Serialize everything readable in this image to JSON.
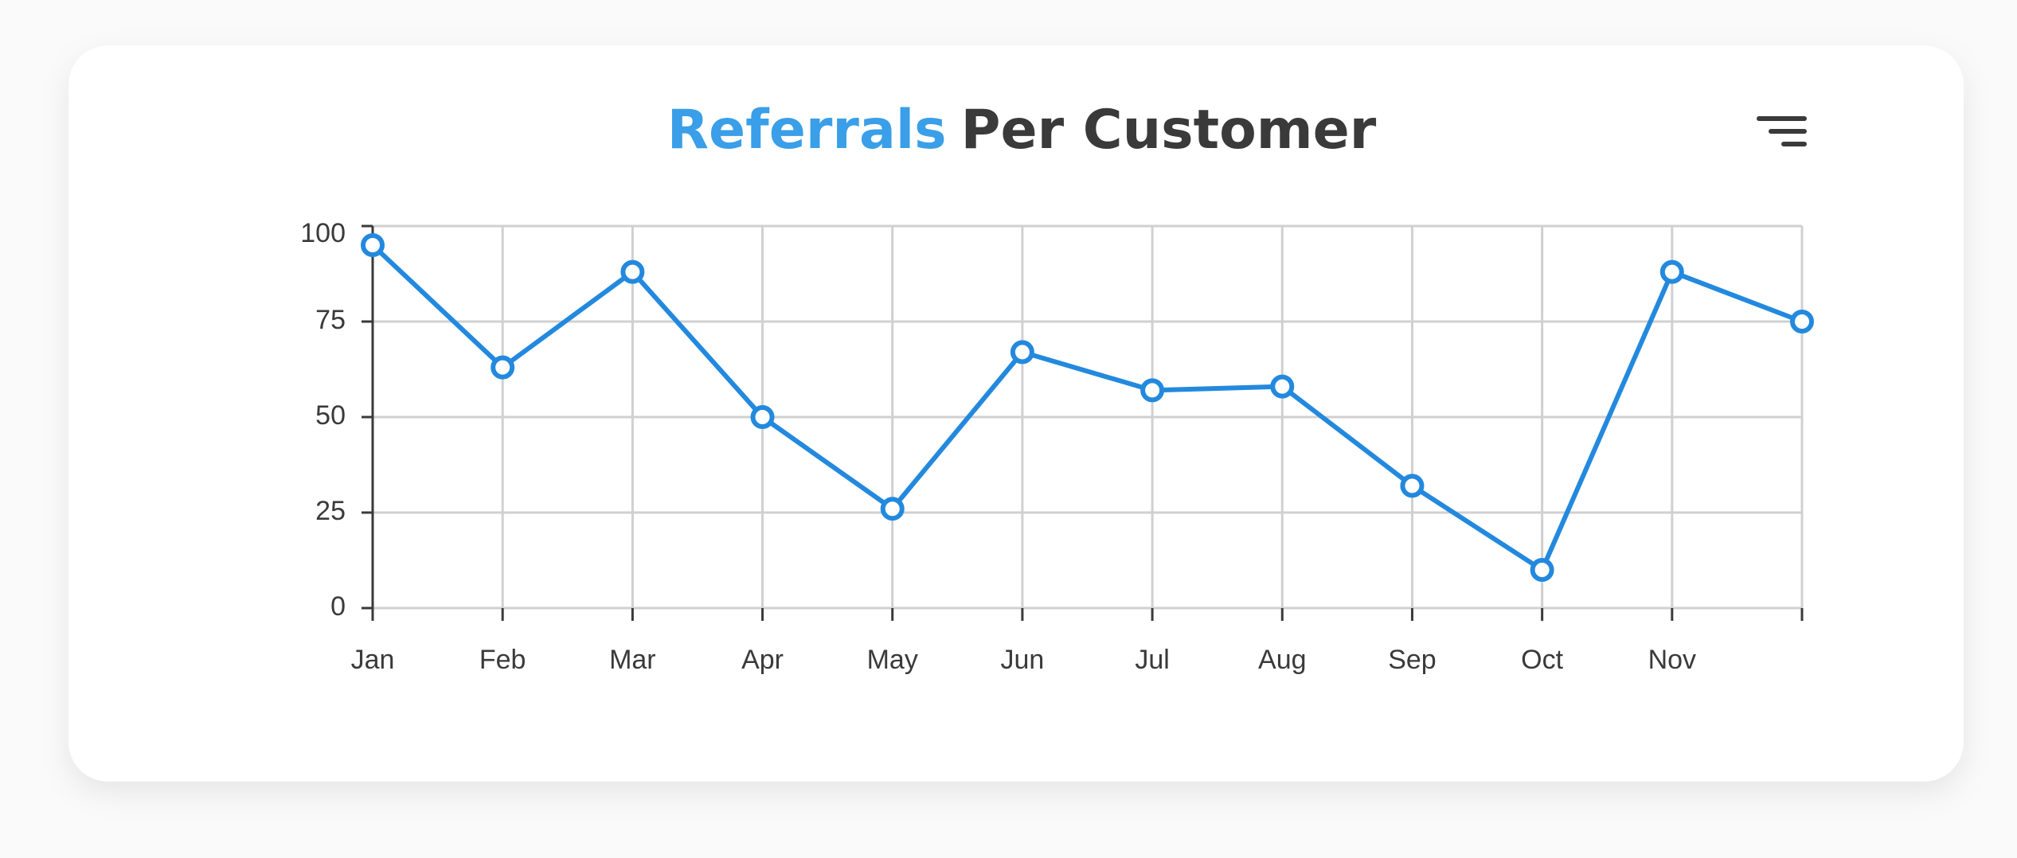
{
  "chart_data": {
    "type": "line",
    "title_parts": [
      "Referrals",
      "Per Customer"
    ],
    "title_colors": [
      "#3a9fe8",
      "#3a3a3a"
    ],
    "categories": [
      "Jan",
      "Feb",
      "Mar",
      "Apr",
      "May",
      "Jun",
      "Jul",
      "Aug",
      "Sep",
      "Oct",
      "Nov",
      null
    ],
    "values": [
      95,
      63,
      88,
      50,
      26,
      67,
      57,
      58,
      32,
      10,
      88,
      75
    ],
    "color": "#2389de",
    "ylim": [
      0,
      100
    ],
    "yticks": [
      0,
      25,
      50,
      75,
      100
    ],
    "grid": true
  }
}
